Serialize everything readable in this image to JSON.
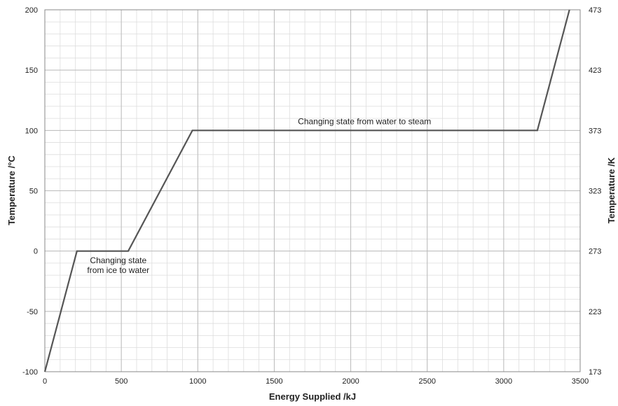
{
  "chart_data": {
    "type": "line",
    "xlabel": "Energy Supplied /kJ",
    "ylabel": "Temperature /°C",
    "y2label": "Temperature /K",
    "xlim": [
      0,
      3500
    ],
    "ylim": [
      -100,
      200
    ],
    "y2lim": [
      173,
      473
    ],
    "x_ticks": [
      0,
      500,
      1000,
      1500,
      2000,
      2500,
      3000,
      3500
    ],
    "y_ticks": [
      -100,
      -50,
      0,
      50,
      100,
      150,
      200
    ],
    "y2_ticks": [
      173,
      223,
      273,
      323,
      373,
      423,
      473
    ],
    "grid": true,
    "series": [
      {
        "x": [
          0,
          210,
          545,
          965,
          3220,
          3430
        ],
        "y": [
          -100,
          0,
          0,
          100,
          100,
          200
        ]
      }
    ],
    "annotations": [
      {
        "lines": [
          "Changing state",
          "from ice to water"
        ],
        "x": 480,
        "y": -10
      },
      {
        "lines": [
          "Changing  state from water to steam"
        ],
        "x": 2090,
        "y": 105
      }
    ],
    "colors": {
      "line": "#555555",
      "grid_major": "#bbbbbb",
      "grid_minor": "#dddddd",
      "axis": "#888888"
    }
  }
}
